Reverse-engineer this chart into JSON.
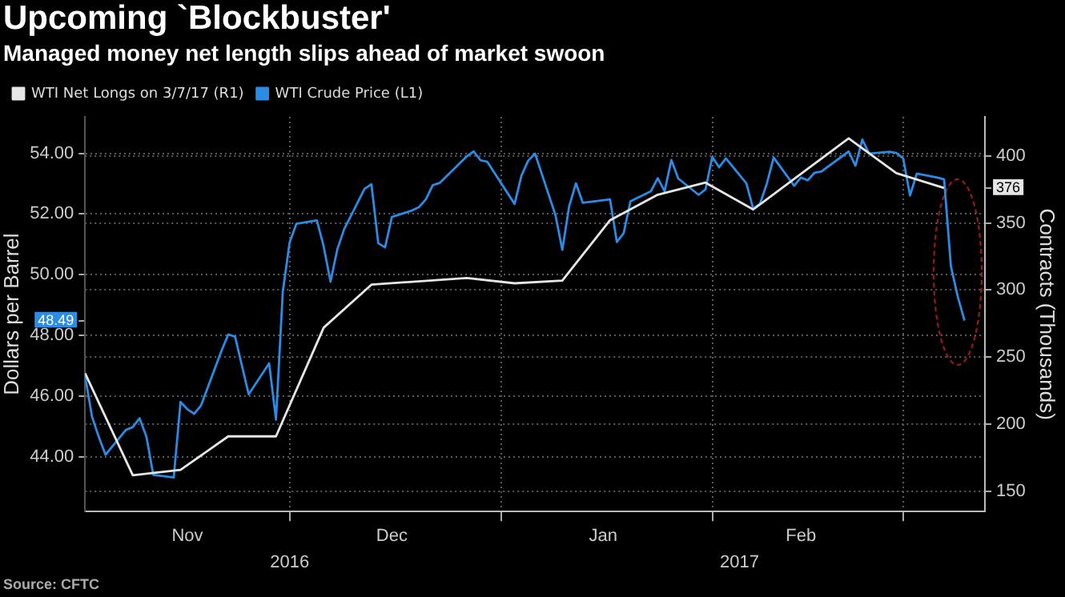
{
  "chart_data": {
    "type": "line",
    "title": "Upcoming `Blockbuster'",
    "subtitle": "Managed money net length slips ahead of market swoon",
    "ylabel": "Dollars per Barrel",
    "y2label": "Contracts (Thousands)",
    "annotations": [
      "Source: CFTC"
    ],
    "xlim": [
      "2016-11-01",
      "2017-03-13"
    ],
    "xticks": [
      {
        "value": "2016-11-16",
        "label": "Nov"
      },
      {
        "value": "2016-12-01",
        "label": null
      },
      {
        "value": "2016-12-16",
        "label": "Dec"
      },
      {
        "value": "2017-01-01",
        "label": null
      },
      {
        "value": "2017-01-16",
        "label": "Jan"
      },
      {
        "value": "2017-02-01",
        "label": null
      },
      {
        "value": "2017-02-14",
        "label": "Feb"
      },
      {
        "value": "2017-03-01",
        "label": null
      }
    ],
    "x2lim": [
      "2016-11-01",
      "2017-03-13"
    ],
    "x2ticks": [
      {
        "value": "2016-12-01",
        "label": "2016"
      },
      {
        "value": "2017-02-05",
        "label": "2017"
      }
    ],
    "ylim": [
      42.2,
      55.2
    ],
    "yticks": [
      {
        "value": 44,
        "label": "44.00"
      },
      {
        "value": 46,
        "label": "46.00"
      },
      {
        "value": 48,
        "label": "48.00"
      },
      {
        "value": 48.49,
        "label": "48.49"
      },
      {
        "value": 50,
        "label": "50.00"
      },
      {
        "value": 52,
        "label": "52.00"
      },
      {
        "value": 54,
        "label": "54.00"
      }
    ],
    "y2lim": [
      135,
      429
    ],
    "y2ticks": [
      150,
      200,
      250,
      300,
      350,
      376,
      400
    ],
    "grid": true,
    "legend": "top left",
    "marker": "none",
    "line_style": "solid",
    "series": [
      {
        "name": "WTI Net Longs on 3/7/17 (R1)",
        "color": "#e6e6e6",
        "axis": "y2",
        "x": [
          "2016-11-01",
          "2016-11-08",
          "2016-11-15",
          "2016-11-22",
          "2016-11-29",
          "2016-12-06",
          "2016-12-13",
          "2016-12-27",
          "2017-01-03",
          "2017-01-10",
          "2017-01-17",
          "2017-01-24",
          "2017-01-31",
          "2017-02-07",
          "2017-02-21",
          "2017-02-28",
          "2017-03-07"
        ],
        "values": [
          238,
          162,
          166,
          191,
          191,
          272,
          304,
          309,
          305,
          307,
          352,
          371,
          380,
          360,
          413,
          387,
          376
        ]
      },
      {
        "name": "WTI Crude Price (L1)",
        "color": "#2b8ce6",
        "x": [
          "2016-11-01",
          "2016-11-02",
          "2016-11-03",
          "2016-11-04",
          "2016-11-07",
          "2016-11-08",
          "2016-11-09",
          "2016-11-10",
          "2016-11-11",
          "2016-11-14",
          "2016-11-15",
          "2016-11-16",
          "2016-11-17",
          "2016-11-18",
          "2016-11-21",
          "2016-11-22",
          "2016-11-23",
          "2016-11-25",
          "2016-11-28",
          "2016-11-29",
          "2016-11-30",
          "2016-12-01",
          "2016-12-02",
          "2016-12-05",
          "2016-12-06",
          "2016-12-07",
          "2016-12-08",
          "2016-12-09",
          "2016-12-12",
          "2016-12-13",
          "2016-12-14",
          "2016-12-15",
          "2016-12-16",
          "2016-12-19",
          "2016-12-20",
          "2016-12-21",
          "2016-12-22",
          "2016-12-23",
          "2016-12-27",
          "2016-12-28",
          "2016-12-29",
          "2016-12-30",
          "2017-01-03",
          "2017-01-04",
          "2017-01-05",
          "2017-01-06",
          "2017-01-09",
          "2017-01-10",
          "2017-01-11",
          "2017-01-12",
          "2017-01-13",
          "2017-01-17",
          "2017-01-18",
          "2017-01-19",
          "2017-01-20",
          "2017-01-23",
          "2017-01-24",
          "2017-01-25",
          "2017-01-26",
          "2017-01-27",
          "2017-01-30",
          "2017-01-31",
          "2017-02-01",
          "2017-02-02",
          "2017-02-03",
          "2017-02-06",
          "2017-02-07",
          "2017-02-08",
          "2017-02-09",
          "2017-02-10",
          "2017-02-13",
          "2017-02-14",
          "2017-02-15",
          "2017-02-16",
          "2017-02-17",
          "2017-02-21",
          "2017-02-22",
          "2017-02-23",
          "2017-02-24",
          "2017-02-27",
          "2017-02-28",
          "2017-03-01",
          "2017-03-02",
          "2017-03-03",
          "2017-03-06",
          "2017-03-07",
          "2017-03-08",
          "2017-03-09",
          "2017-03-10"
        ],
        "values": [
          46.67,
          45.34,
          44.66,
          44.07,
          44.89,
          44.98,
          45.27,
          44.66,
          43.41,
          43.32,
          45.81,
          45.57,
          45.42,
          45.69,
          47.49,
          48.03,
          47.96,
          46.06,
          47.08,
          45.23,
          49.44,
          51.06,
          51.68,
          51.79,
          50.93,
          49.77,
          50.84,
          51.5,
          52.83,
          52.98,
          51.04,
          50.9,
          51.9,
          52.12,
          52.23,
          52.49,
          52.95,
          53.02,
          53.9,
          54.06,
          53.77,
          53.72,
          52.33,
          53.26,
          53.76,
          53.99,
          51.96,
          50.82,
          52.25,
          53.01,
          52.37,
          52.48,
          51.08,
          51.37,
          52.42,
          52.75,
          53.18,
          52.75,
          53.78,
          53.17,
          52.63,
          52.81,
          53.88,
          53.54,
          53.83,
          53.01,
          52.17,
          52.34,
          53.0,
          53.86,
          52.93,
          53.2,
          53.11,
          53.36,
          53.4,
          54.06,
          53.59,
          54.45,
          53.99,
          54.05,
          54.01,
          53.83,
          52.61,
          53.33,
          53.2,
          53.14,
          50.28,
          49.28,
          48.49
        ]
      }
    ]
  }
}
